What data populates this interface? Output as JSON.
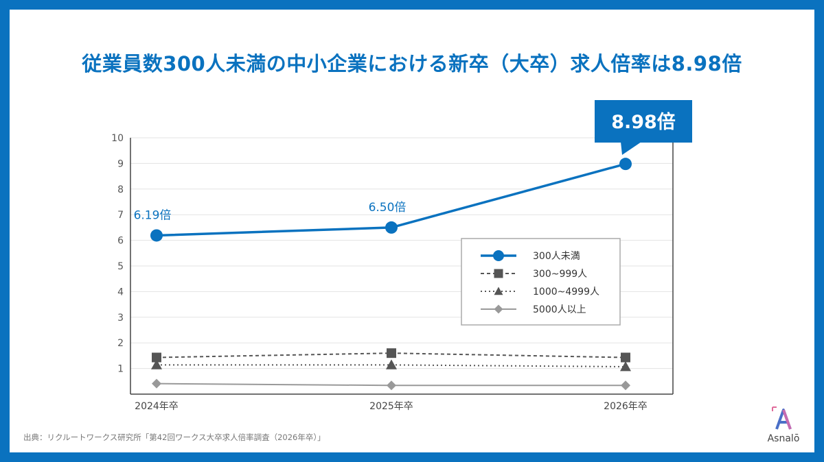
{
  "title": "従業員数300人未満の中小企業における新卒（大卒）求人倍率は8.98倍",
  "source": "出典：リクルートワークス研究所「第42回ワークス大卒求人倍率調査（2026年卒）」",
  "logo": {
    "text": "Asnalō",
    "icon": "asnalo-logo-icon"
  },
  "colors": {
    "frame": "#0a72bf",
    "accent": "#0a72bf",
    "gray_dark": "#555555",
    "gray_light": "#999999"
  },
  "chart_data": {
    "type": "line",
    "categories": [
      "2024年卒",
      "2025年卒",
      "2026年卒"
    ],
    "ylim": [
      0,
      10
    ],
    "yticks": [
      1,
      2,
      3,
      4,
      5,
      6,
      7,
      8,
      9,
      10
    ],
    "grid": true,
    "legend": "center-right",
    "series": [
      {
        "name": "300人未満",
        "values": [
          6.19,
          6.5,
          8.98
        ],
        "labels": [
          "6.19倍",
          "6.50倍",
          ""
        ],
        "marker": "circle",
        "style": "solid",
        "color": "#0a72bf"
      },
      {
        "name": "300~999人",
        "values": [
          1.43,
          1.6,
          1.43
        ],
        "marker": "square",
        "style": "dashed",
        "color": "#555555"
      },
      {
        "name": "1000~4999人",
        "values": [
          1.14,
          1.14,
          1.07
        ],
        "marker": "triangle",
        "style": "dotted",
        "color": "#555555"
      },
      {
        "name": "5000人以上",
        "values": [
          0.41,
          0.34,
          0.34
        ],
        "marker": "diamond",
        "style": "solid",
        "color": "#999999"
      }
    ],
    "callout": {
      "text": "8.98倍",
      "series": 0,
      "index": 2
    }
  }
}
